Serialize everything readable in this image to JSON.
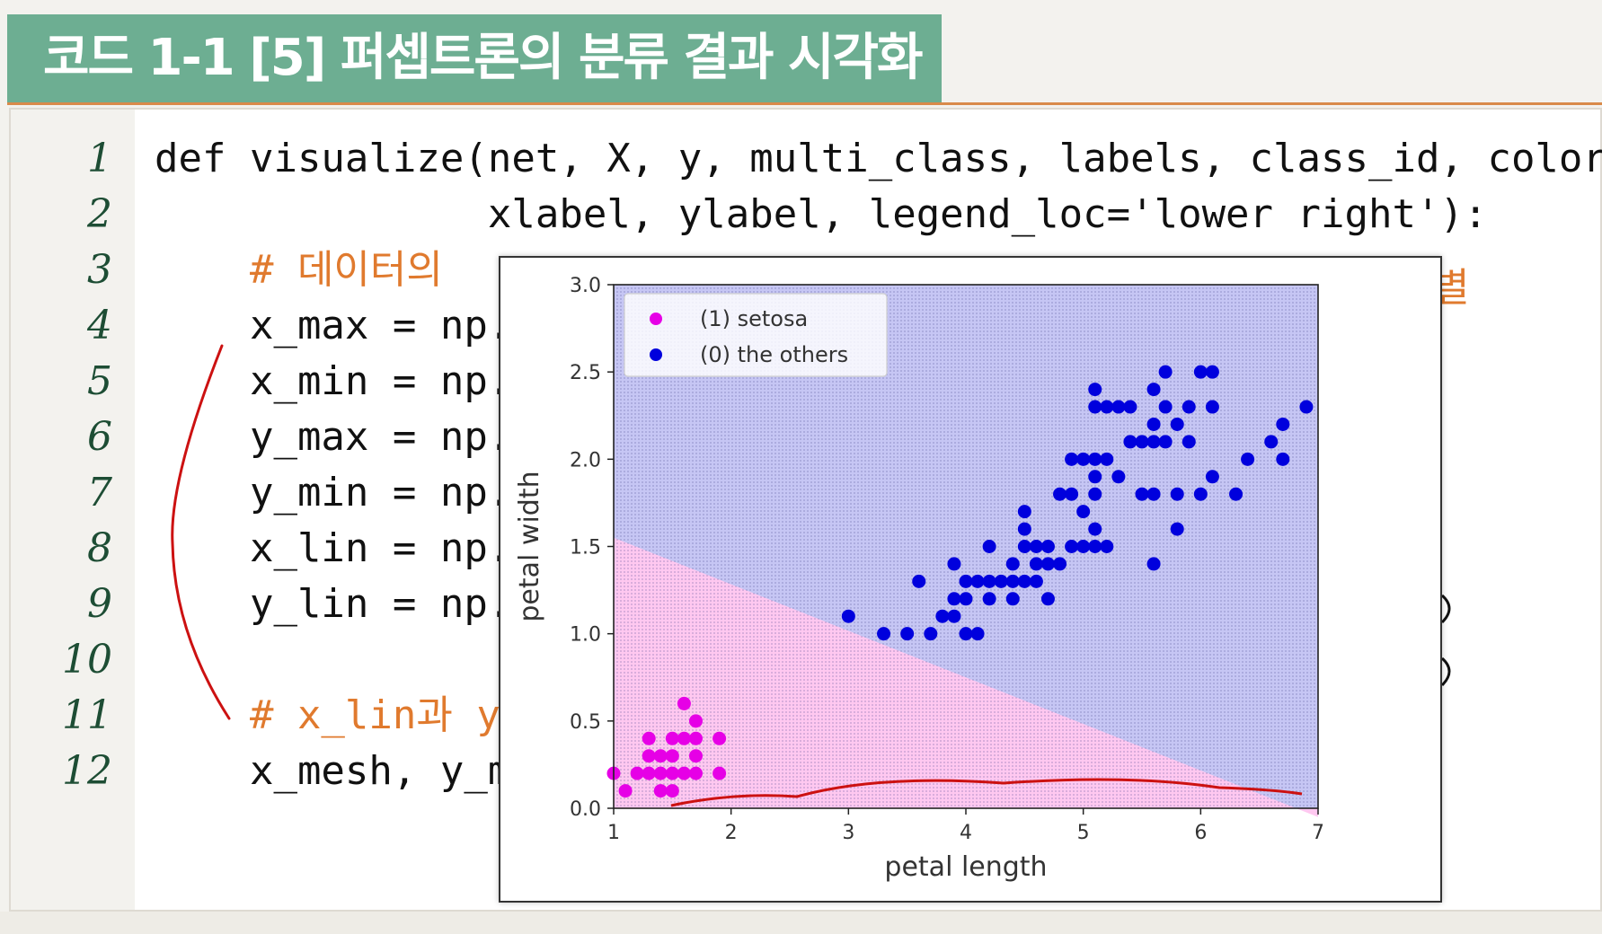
{
  "header": {
    "title": "코드 1-1 [5] 퍼셉트론의 분류 결과 시각화"
  },
  "colors": {
    "header_bg": "#6dae92",
    "comment": "#e07a2e",
    "line_number": "#1d4d34",
    "setosa": "#e600e6",
    "others": "#0000dd",
    "annotation_pen": "#cc1111"
  },
  "code": {
    "line_numbers": [
      "1",
      "2",
      "3",
      "4",
      "5",
      "6",
      "7",
      "8",
      "9",
      "10",
      "11",
      "12"
    ],
    "lines": [
      "def visualize(net, X, y, multi_class, labels, class_id, colors,",
      "              xlabel, ylabel, legend_loc='lower right'):",
      "    # 데이터의 ",
      "    x_max = np.",
      "    x_min = np.",
      "    y_max = np.",
      "    y_min = np.",
      "    x_lin = np.",
      "    y_lin = np.",
      "",
      "    # x_lin과 y_",
      "    x_mesh, y_m"
    ],
    "comment_line_3_tail": "별"
  },
  "chart_data": {
    "type": "scatter",
    "xlabel": "petal length",
    "ylabel": "petal width",
    "xlim": [
      1,
      7
    ],
    "ylim": [
      0,
      3
    ],
    "xticks": [
      "1",
      "2",
      "3",
      "4",
      "5",
      "6",
      "7"
    ],
    "yticks": [
      "0.0",
      "0.5",
      "1.0",
      "1.5",
      "2.0",
      "2.5",
      "3.0"
    ],
    "legend_location": "upper-left",
    "decision_boundary": {
      "x": [
        1,
        7
      ],
      "y": [
        1.55,
        -0.05
      ]
    },
    "regions": [
      {
        "name": "(1) setosa",
        "color": "#ffc8f0"
      },
      {
        "name": "(0) the others",
        "color": "#c6c6f4"
      }
    ],
    "series": [
      {
        "name": "(1) setosa",
        "color": "#e600e6",
        "points": [
          [
            1.0,
            0.2
          ],
          [
            1.1,
            0.1
          ],
          [
            1.2,
            0.2
          ],
          [
            1.3,
            0.2
          ],
          [
            1.3,
            0.3
          ],
          [
            1.3,
            0.4
          ],
          [
            1.4,
            0.1
          ],
          [
            1.4,
            0.2
          ],
          [
            1.4,
            0.3
          ],
          [
            1.5,
            0.1
          ],
          [
            1.5,
            0.2
          ],
          [
            1.5,
            0.3
          ],
          [
            1.5,
            0.4
          ],
          [
            1.6,
            0.2
          ],
          [
            1.6,
            0.4
          ],
          [
            1.6,
            0.6
          ],
          [
            1.7,
            0.2
          ],
          [
            1.7,
            0.3
          ],
          [
            1.7,
            0.4
          ],
          [
            1.7,
            0.5
          ],
          [
            1.9,
            0.2
          ],
          [
            1.9,
            0.4
          ]
        ]
      },
      {
        "name": "(0) the others",
        "color": "#0000dd",
        "points": [
          [
            3.0,
            1.1
          ],
          [
            3.3,
            1.0
          ],
          [
            3.5,
            1.0
          ],
          [
            3.6,
            1.3
          ],
          [
            3.7,
            1.0
          ],
          [
            3.8,
            1.1
          ],
          [
            3.9,
            1.1
          ],
          [
            3.9,
            1.2
          ],
          [
            3.9,
            1.4
          ],
          [
            4.0,
            1.0
          ],
          [
            4.0,
            1.2
          ],
          [
            4.0,
            1.3
          ],
          [
            4.1,
            1.0
          ],
          [
            4.1,
            1.3
          ],
          [
            4.2,
            1.2
          ],
          [
            4.2,
            1.3
          ],
          [
            4.2,
            1.5
          ],
          [
            4.3,
            1.3
          ],
          [
            4.4,
            1.2
          ],
          [
            4.4,
            1.3
          ],
          [
            4.4,
            1.4
          ],
          [
            4.5,
            1.3
          ],
          [
            4.5,
            1.5
          ],
          [
            4.5,
            1.6
          ],
          [
            4.5,
            1.7
          ],
          [
            4.6,
            1.3
          ],
          [
            4.6,
            1.4
          ],
          [
            4.6,
            1.5
          ],
          [
            4.7,
            1.2
          ],
          [
            4.7,
            1.4
          ],
          [
            4.7,
            1.5
          ],
          [
            4.8,
            1.4
          ],
          [
            4.8,
            1.8
          ],
          [
            4.9,
            1.5
          ],
          [
            4.9,
            1.8
          ],
          [
            4.9,
            2.0
          ],
          [
            5.0,
            1.5
          ],
          [
            5.0,
            1.7
          ],
          [
            5.0,
            2.0
          ],
          [
            5.1,
            1.5
          ],
          [
            5.1,
            1.6
          ],
          [
            5.1,
            1.8
          ],
          [
            5.1,
            1.9
          ],
          [
            5.1,
            2.0
          ],
          [
            5.1,
            2.3
          ],
          [
            5.1,
            2.4
          ],
          [
            5.2,
            1.5
          ],
          [
            5.2,
            2.0
          ],
          [
            5.2,
            2.3
          ],
          [
            5.3,
            1.9
          ],
          [
            5.3,
            2.3
          ],
          [
            5.4,
            2.1
          ],
          [
            5.4,
            2.3
          ],
          [
            5.5,
            1.8
          ],
          [
            5.5,
            2.1
          ],
          [
            5.6,
            1.4
          ],
          [
            5.6,
            1.8
          ],
          [
            5.6,
            2.1
          ],
          [
            5.6,
            2.2
          ],
          [
            5.6,
            2.4
          ],
          [
            5.7,
            2.1
          ],
          [
            5.7,
            2.3
          ],
          [
            5.7,
            2.5
          ],
          [
            5.8,
            1.6
          ],
          [
            5.8,
            1.8
          ],
          [
            5.8,
            2.2
          ],
          [
            5.9,
            2.1
          ],
          [
            5.9,
            2.3
          ],
          [
            6.0,
            1.8
          ],
          [
            6.0,
            2.5
          ],
          [
            6.1,
            1.9
          ],
          [
            6.1,
            2.3
          ],
          [
            6.1,
            2.5
          ],
          [
            6.3,
            1.8
          ],
          [
            6.4,
            2.0
          ],
          [
            6.6,
            2.1
          ],
          [
            6.7,
            2.0
          ],
          [
            6.7,
            2.2
          ],
          [
            6.9,
            2.3
          ]
        ]
      }
    ]
  }
}
